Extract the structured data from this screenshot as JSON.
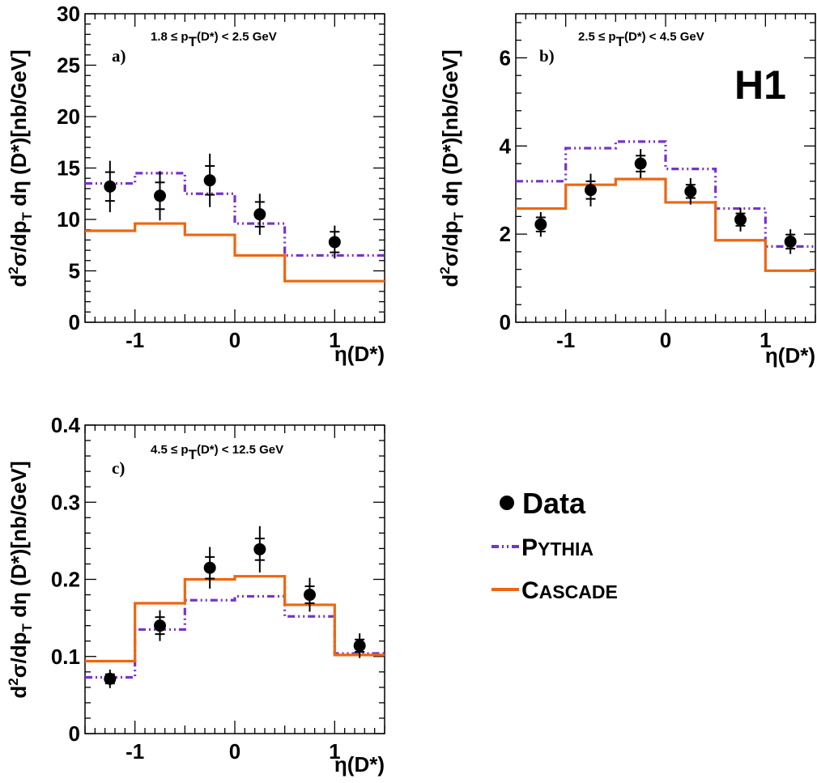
{
  "experiment_label": "H1",
  "colors": {
    "pythia": "#7733cc",
    "cascade": "#ee6611",
    "data": "#000000"
  },
  "legend": {
    "data_label": "Data",
    "pythia_label_cap": "P",
    "pythia_label_rest": "YTHIA",
    "cascade_label_cap": "C",
    "cascade_label_rest": "ASCADE"
  },
  "chart_data": [
    {
      "type": "histogram-with-points",
      "panel": "a)",
      "range_label": "1.8 ≤ p_T(D*) < 2.5 GeV",
      "xlabel": "η(D*)",
      "ylabel": "d²σ/dp_T dη (D*)[nb/GeV]",
      "xlim": [
        -1.5,
        1.5
      ],
      "ylim": [
        0,
        30
      ],
      "xticks": [
        -1,
        0,
        1
      ],
      "yticks": [
        0,
        5,
        10,
        15,
        20,
        25,
        30
      ],
      "bin_edges": [
        -1.5,
        -1.0,
        -0.5,
        0.0,
        0.5,
        1.5
      ],
      "series": [
        {
          "name": "Data",
          "x": [
            -1.25,
            -0.75,
            -0.25,
            0.25,
            1.0
          ],
          "y": [
            13.2,
            12.3,
            13.8,
            10.5,
            7.8
          ],
          "err_stat": [
            1.4,
            1.3,
            1.4,
            1.2,
            1.0
          ],
          "err_tot": [
            2.5,
            2.4,
            2.6,
            2.0,
            1.6
          ]
        },
        {
          "name": "PYTHIA",
          "values": [
            13.5,
            14.5,
            12.5,
            9.6,
            6.5
          ]
        },
        {
          "name": "CASCADE",
          "values": [
            8.9,
            9.6,
            8.5,
            6.5,
            4.0
          ]
        }
      ]
    },
    {
      "type": "histogram-with-points",
      "panel": "b)",
      "range_label": "2.5 ≤ p_T(D*) < 4.5 GeV",
      "xlabel": "η(D*)",
      "ylabel": "d²σ/dp_T dη (D*)[nb/GeV]",
      "xlim": [
        -1.5,
        1.5
      ],
      "ylim": [
        0,
        7
      ],
      "xticks": [
        -1,
        0,
        1
      ],
      "yticks": [
        0,
        2,
        4,
        6
      ],
      "bin_edges": [
        -1.5,
        -1.0,
        -0.5,
        0.0,
        0.5,
        1.0,
        1.5
      ],
      "series": [
        {
          "name": "Data",
          "x": [
            -1.25,
            -0.75,
            -0.25,
            0.25,
            0.75,
            1.25
          ],
          "y": [
            2.22,
            3.0,
            3.6,
            2.97,
            2.33,
            1.83
          ],
          "err_stat": [
            0.16,
            0.2,
            0.18,
            0.15,
            0.14,
            0.16
          ],
          "err_tot": [
            0.28,
            0.37,
            0.33,
            0.3,
            0.27,
            0.28
          ]
        },
        {
          "name": "PYTHIA",
          "values": [
            3.2,
            3.95,
            4.1,
            3.48,
            2.58,
            1.72
          ]
        },
        {
          "name": "CASCADE",
          "values": [
            2.58,
            3.12,
            3.25,
            2.72,
            1.86,
            1.17
          ]
        }
      ]
    },
    {
      "type": "histogram-with-points",
      "panel": "c)",
      "range_label": "4.5 ≤ p_T(D*) < 12.5 GeV",
      "xlabel": "η(D*)",
      "ylabel": "d²σ/dp_T dη (D*)[nb/GeV]",
      "xlim": [
        -1.5,
        1.5
      ],
      "ylim": [
        0,
        0.4
      ],
      "xticks": [
        -1,
        0,
        1
      ],
      "yticks": [
        0,
        0.1,
        0.2,
        0.3,
        0.4
      ],
      "bin_edges": [
        -1.5,
        -1.0,
        -0.5,
        0.0,
        0.5,
        1.0,
        1.5
      ],
      "series": [
        {
          "name": "Data",
          "x": [
            -1.25,
            -0.75,
            -0.25,
            0.25,
            0.75,
            1.25
          ],
          "y": [
            0.071,
            0.14,
            0.215,
            0.239,
            0.18,
            0.114
          ],
          "err_stat": [
            0.006,
            0.011,
            0.014,
            0.014,
            0.011,
            0.008
          ],
          "err_tot": [
            0.012,
            0.02,
            0.027,
            0.03,
            0.022,
            0.016
          ]
        },
        {
          "name": "PYTHIA",
          "values": [
            0.073,
            0.135,
            0.173,
            0.178,
            0.152,
            0.104
          ]
        },
        {
          "name": "CASCADE",
          "values": [
            0.094,
            0.169,
            0.2,
            0.204,
            0.167,
            0.102
          ]
        }
      ]
    }
  ]
}
